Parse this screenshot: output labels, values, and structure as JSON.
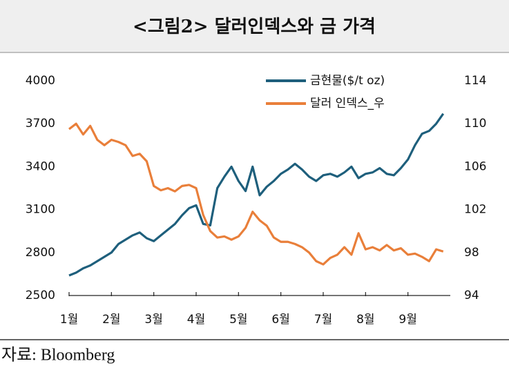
{
  "chart_data": {
    "type": "line",
    "title": "<그림2> 달러인덱스와 금 가격",
    "source": "자료: Bloomberg",
    "categories": [
      "1월",
      null,
      null,
      null,
      null,
      null,
      "2월",
      null,
      null,
      null,
      null,
      null,
      "3월",
      null,
      null,
      null,
      null,
      null,
      "4월",
      null,
      null,
      null,
      null,
      null,
      "5월",
      null,
      null,
      null,
      null,
      null,
      "6월",
      null,
      null,
      null,
      null,
      null,
      "7월",
      null,
      null,
      null,
      null,
      null,
      "8월",
      null,
      null,
      null,
      null,
      null,
      "9월",
      null,
      null,
      null,
      null,
      null
    ],
    "series": [
      {
        "name": "금현물($/t oz)",
        "color": "#1e5f7c",
        "axis": "y",
        "values": [
          2640,
          2660,
          2690,
          2710,
          2740,
          2770,
          2800,
          2860,
          2890,
          2920,
          2940,
          2900,
          2880,
          2920,
          2960,
          3000,
          3060,
          3110,
          3130,
          3000,
          2990,
          3250,
          3330,
          3400,
          3300,
          3230,
          3400,
          3200,
          3260,
          3300,
          3350,
          3380,
          3420,
          3380,
          3330,
          3300,
          3340,
          3350,
          3330,
          3360,
          3400,
          3320,
          3350,
          3360,
          3390,
          3350,
          3340,
          3390,
          3450,
          3550,
          3630,
          3650,
          3700,
          3770
        ]
      },
      {
        "name": "달러 인덱스_우",
        "color": "#e97f3a",
        "axis": "y2",
        "values": [
          109.5,
          110,
          109,
          109.8,
          108.5,
          108,
          108.5,
          108.3,
          108,
          107,
          107.2,
          106.5,
          104.2,
          103.8,
          104,
          103.7,
          104.2,
          104.3,
          104,
          101.5,
          100,
          99.4,
          99.5,
          99.2,
          99.5,
          100.3,
          101.8,
          101,
          100.5,
          99.4,
          99,
          99,
          98.8,
          98.5,
          98,
          97.2,
          96.9,
          97.5,
          97.8,
          98.5,
          97.8,
          99.8,
          98.3,
          98.5,
          98.2,
          98.7,
          98.2,
          98.4,
          97.8,
          97.9,
          97.6,
          97.2,
          98.3,
          98.1
        ]
      }
    ],
    "ylim": [
      2500,
      4000
    ],
    "yticks": [
      2500,
      2800,
      3100,
      3400,
      3700,
      4000
    ],
    "y2lim": [
      94,
      114
    ],
    "y2ticks": [
      94,
      98,
      102,
      106,
      110,
      114
    ],
    "grid": false,
    "legend": "upper right"
  }
}
